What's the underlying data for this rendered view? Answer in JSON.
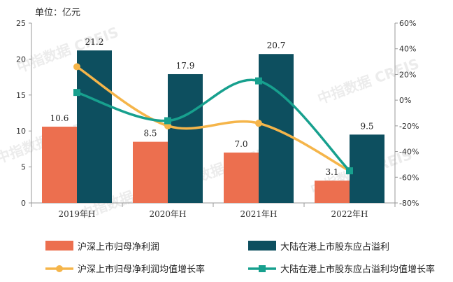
{
  "watermark": {
    "text": "中指数据 CREIS"
  },
  "chart_data": {
    "type": "bar",
    "unit_label": "单位：亿元",
    "categories": [
      "2019年H",
      "2020年H",
      "2021年H",
      "2022年H"
    ],
    "left_axis": {
      "min": 0,
      "max": 25,
      "ticks": [
        0,
        5,
        10,
        15,
        20,
        25
      ]
    },
    "right_axis": {
      "min": -80,
      "max": 60,
      "ticks": [
        "-80%",
        "-60%",
        "-40%",
        "-20%",
        "0%",
        "20%",
        "40%",
        "60%"
      ]
    },
    "bar_series": [
      {
        "name": "沪深上市归母净利润",
        "color": "#ec6f4f",
        "values": [
          10.6,
          8.5,
          7.0,
          3.1
        ],
        "labels": [
          "10.6",
          "8.5",
          "7.0",
          "3.1"
        ]
      },
      {
        "name": "大陆在港上市股东应占溢利",
        "color": "#0d4f5f",
        "values": [
          21.2,
          17.9,
          20.7,
          9.5
        ],
        "labels": [
          "21.2",
          "17.9",
          "20.7",
          "9.5"
        ]
      }
    ],
    "line_series": [
      {
        "name": "沪深上市归母净利润均值增长率",
        "color": "#f5b54a",
        "values": [
          26,
          -20,
          -18,
          -55
        ]
      },
      {
        "name": "大陆在港上市股东应占溢利均值增长率",
        "color": "#17a08e",
        "values": [
          6,
          -16,
          15,
          -55
        ]
      }
    ]
  }
}
